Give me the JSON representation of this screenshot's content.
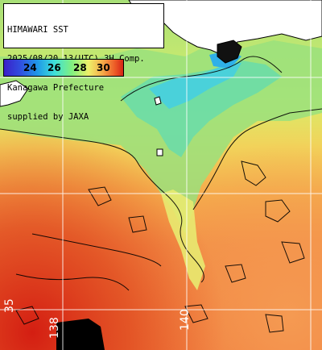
{
  "header": {
    "line1": "HIMAWARI SST",
    "line2": "2025/08/20 13(UTC) 3H Comp.",
    "line3": "Kanagawa Prefecture",
    "line4": "supplied by JAXA"
  },
  "legend": {
    "labels": [
      "24",
      "26",
      "28",
      "30"
    ],
    "colors": [
      "#3a20c8",
      "#1f8fe8",
      "#3fe0e0",
      "#7cf08a",
      "#e8f070",
      "#f5b050",
      "#ee6a2a",
      "#d42016"
    ]
  },
  "grid_labels": {
    "lat_35": "35",
    "lon_138": "138",
    "lon_140": "140"
  },
  "colors": {
    "land": "#ffffff",
    "no_data": "#000000",
    "grid": "#ffffff",
    "coast": "#000000"
  }
}
